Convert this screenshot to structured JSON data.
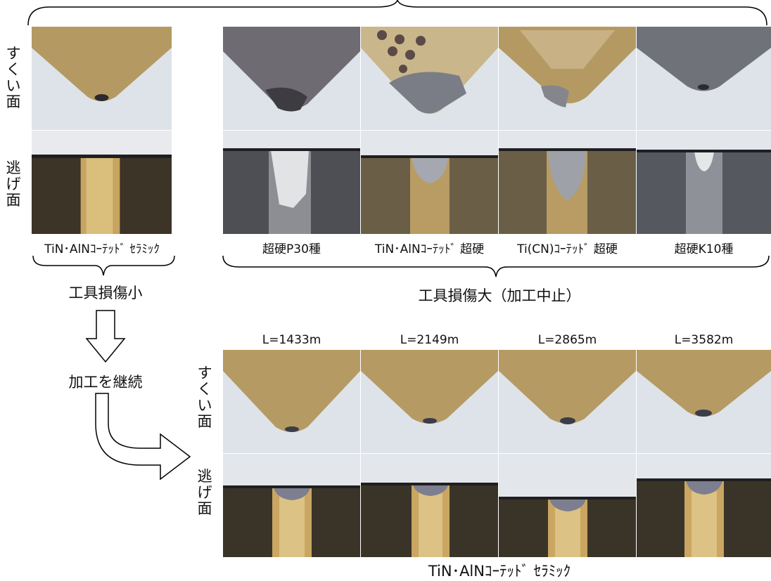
{
  "top_left": {
    "rake_label": "すくい面",
    "flank_label": "逃げ面",
    "caption": "TiN･AlNｺｰﾃｯﾄﾞ ｾﾗﾐｯｸ",
    "result": "工具損傷小"
  },
  "top_right": {
    "captions": [
      "超硬P30種",
      "TiN･AlNｺｰﾃｯﾄﾞ 超硬",
      "Ti(CN)ｺｰﾃｯﾄﾞ 超硬",
      "超硬K10種"
    ],
    "result": "工具損傷大（加工中止）"
  },
  "flow": {
    "continue_label": "加工を継続"
  },
  "bottom": {
    "lengths": [
      "L=1433m",
      "L=2149m",
      "L=2865m",
      "L=3582m"
    ],
    "rake_label": "すくい面",
    "flank_label": "逃げ面",
    "caption": "TiN･AlNｺｰﾃｯﾄﾞ ｾﾗﾐｯｸ"
  },
  "colors": {
    "gold_rake": "#b59a63",
    "gray_rake": "#6f6c70",
    "bg_light": "#dce2e8",
    "flank_dark": "#3a3428",
    "gold_flank": "#caa662"
  }
}
